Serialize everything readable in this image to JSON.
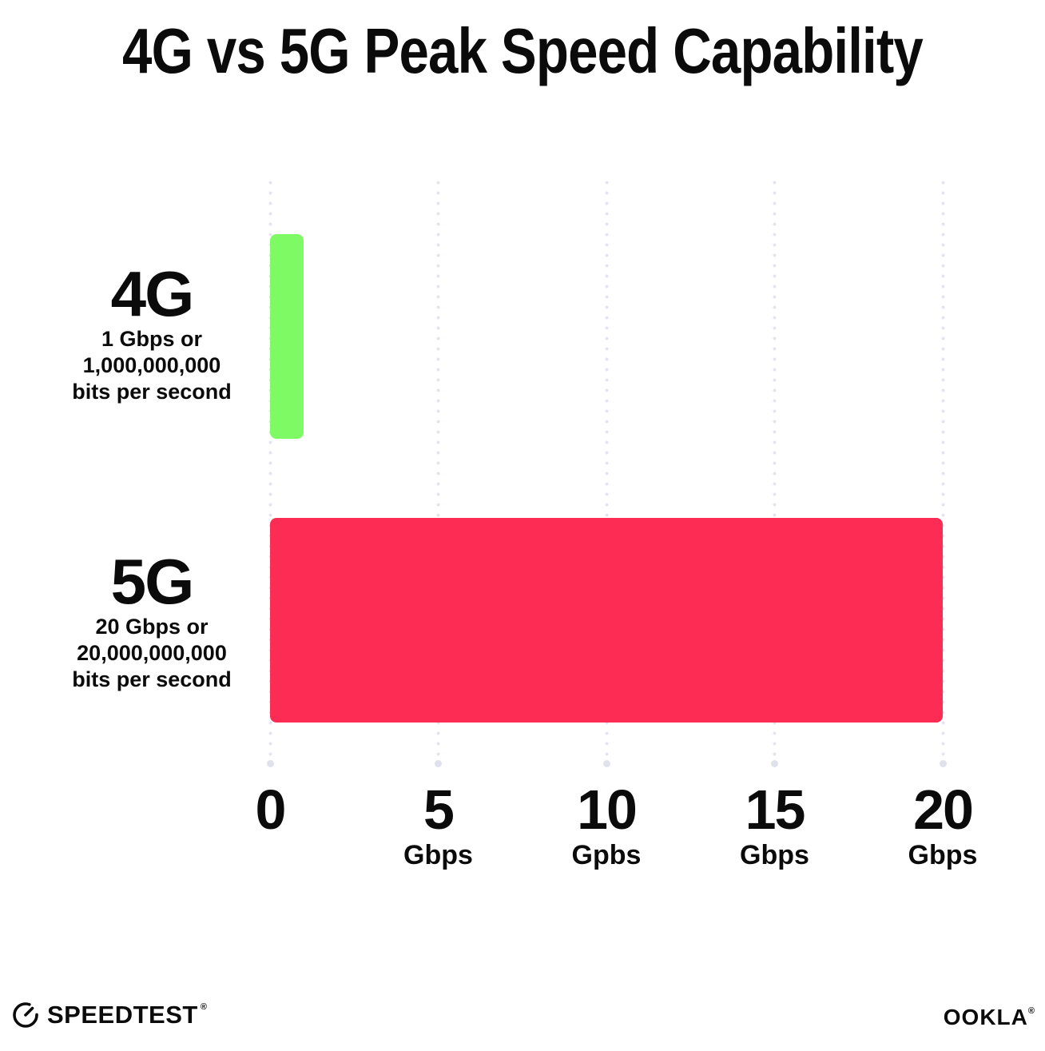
{
  "title": "4G vs 5G Peak Speed Capability",
  "chart_data": {
    "type": "bar",
    "orientation": "horizontal",
    "title": "4G vs 5G Peak Speed Capability",
    "categories": [
      "4G",
      "5G"
    ],
    "values": [
      1,
      20
    ],
    "value_unit": "Gbps",
    "xlim": [
      0,
      20
    ],
    "x_tick_interval": 5,
    "grid": "vertical-dotted",
    "legend": "none",
    "bar_colors": [
      "#7DFA64",
      "#FD2C55"
    ],
    "rows": [
      {
        "name": "4G",
        "value_gbps": 1,
        "desc_lines": [
          "1 Gbps or",
          "1,000,000,000",
          "bits per second"
        ]
      },
      {
        "name": "5G",
        "value_gbps": 20,
        "desc_lines": [
          "20 Gbps or",
          "20,000,000,000",
          "bits per second"
        ]
      }
    ],
    "x_ticks": [
      {
        "value": "0",
        "unit": ""
      },
      {
        "value": "5",
        "unit": "Gbps"
      },
      {
        "value": "10",
        "unit": "Gpbs"
      },
      {
        "value": "15",
        "unit": "Gbps"
      },
      {
        "value": "20",
        "unit": "Gbps"
      }
    ]
  },
  "footer": {
    "left_logo": "SPEEDTEST",
    "left_logo_mark": "®",
    "right_logo": "OOKLA",
    "right_logo_mark": "®"
  },
  "colors": {
    "background": "#FFFFFF",
    "text": "#0B0B0B",
    "grid_dot": "#E2E4EF",
    "bar_4g": "#7DFA64",
    "bar_5g": "#FD2C55"
  }
}
